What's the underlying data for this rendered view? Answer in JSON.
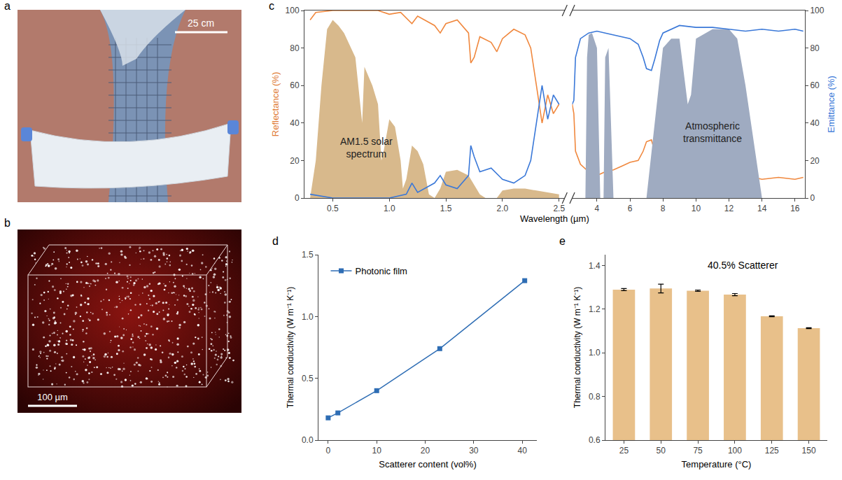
{
  "images": [
    {
      "panel": "a",
      "scale_bar": "25 cm"
    },
    {
      "panel": "b",
      "scale_bar": "100 µm"
    }
  ],
  "chart_data": [
    {
      "panel": "c",
      "type": "line",
      "xlabel": "Wavelength (µm)",
      "ylabel": "Reflectance (%)",
      "y2label": "Emittance (%)",
      "xlim": [
        0.25,
        2.55
      ],
      "xticks": [
        0.5,
        {
          "value": 1,
          "label": "1.0"
        },
        1.5,
        {
          "value": 2,
          "label": "2.0"
        },
        2.5
      ],
      "x2lim": [
        2.5,
        16.6
      ],
      "x2ticks": [
        4,
        6,
        8,
        10,
        12,
        14,
        16
      ],
      "ylim": [
        0,
        100
      ],
      "yticks": [
        0,
        20,
        40,
        60,
        80,
        100
      ],
      "y2lim": [
        0,
        100
      ],
      "y2ticks": [
        0,
        20,
        40,
        60,
        80,
        100
      ],
      "series": [
        {
          "name": "AM1.5 solar spectrum",
          "type": "area",
          "color": "#d8b98c",
          "x": [
            0.3,
            0.35,
            0.4,
            0.45,
            0.5,
            0.55,
            0.6,
            0.7,
            0.76,
            0.78,
            0.85,
            0.9,
            0.93,
            0.95,
            1.0,
            1.05,
            1.1,
            1.12,
            1.15,
            1.2,
            1.25,
            1.3,
            1.35,
            1.4,
            1.45,
            1.5,
            1.6,
            1.7,
            1.8,
            1.85,
            1.95,
            2.0,
            2.1,
            2.2,
            2.3,
            2.5
          ],
          "values": [
            0,
            20,
            60,
            90,
            95,
            92,
            88,
            75,
            40,
            70,
            60,
            50,
            20,
            25,
            42,
            38,
            20,
            5,
            10,
            28,
            25,
            18,
            2,
            0,
            5,
            14,
            15,
            12,
            2,
            0,
            0,
            4,
            5,
            5,
            4,
            2
          ]
        },
        {
          "name": "Atmospheric transmittance",
          "type": "area",
          "color": "#9fabc1",
          "axis": "y2",
          "x": [
            3.3,
            3.4,
            3.5,
            3.7,
            4.0,
            4.2,
            4.4,
            4.5,
            4.7,
            5.0,
            7.0,
            7.5,
            8.0,
            8.5,
            9.0,
            9.5,
            9.7,
            10.0,
            11.0,
            12.0,
            12.5,
            13.0,
            13.5,
            14.0,
            16.5
          ],
          "values": [
            0,
            75,
            87,
            88,
            80,
            0,
            0,
            75,
            80,
            0,
            0,
            40,
            80,
            85,
            85,
            50,
            55,
            85,
            90,
            90,
            85,
            60,
            30,
            0,
            0
          ]
        },
        {
          "color": "#f0883e",
          "x": [
            0.3,
            0.35,
            0.5,
            0.9,
            1.0,
            1.1,
            1.2,
            1.25,
            1.4,
            1.45,
            1.5,
            1.6,
            1.7,
            1.72,
            1.75,
            1.8,
            1.9,
            1.95,
            2.0,
            2.1,
            2.2,
            2.25,
            2.3,
            2.35,
            2.4,
            2.45,
            2.5,
            2.6,
            2.7,
            3.0,
            3.5,
            4.0,
            4.5,
            5.0,
            5.5,
            6.0,
            6.5,
            6.8,
            7.0,
            7.3,
            7.5,
            7.8,
            8.0,
            9.0,
            10.0,
            11.0,
            12.0,
            13.0,
            14.0,
            15.0,
            16.0,
            16.5
          ],
          "values": [
            95,
            99,
            100,
            100,
            98,
            99,
            93,
            97,
            92,
            88,
            93,
            95,
            88,
            72,
            75,
            86,
            83,
            78,
            85,
            90,
            87,
            80,
            60,
            40,
            55,
            45,
            50,
            45,
            25,
            18,
            14,
            12,
            14,
            15,
            17,
            19,
            20,
            25,
            30,
            31,
            25,
            15,
            10,
            7,
            8,
            9,
            10,
            12,
            10,
            11,
            10,
            11
          ]
        },
        {
          "color": "#3a78d8",
          "axis": "y2",
          "x": [
            0.3,
            0.5,
            1.0,
            1.15,
            1.2,
            1.25,
            1.4,
            1.45,
            1.5,
            1.6,
            1.7,
            1.72,
            1.75,
            1.8,
            1.9,
            2.0,
            2.1,
            2.2,
            2.25,
            2.3,
            2.35,
            2.4,
            2.45,
            2.5,
            2.6,
            2.7,
            3.0,
            3.5,
            4.0,
            4.5,
            5.0,
            5.5,
            6.0,
            6.5,
            6.8,
            7.0,
            7.3,
            7.5,
            7.8,
            8.0,
            9.0,
            10.0,
            11.0,
            12.0,
            13.0,
            14.0,
            15.0,
            16.0,
            16.5
          ],
          "values": [
            2,
            0,
            0,
            2,
            8,
            3,
            8,
            12,
            7,
            5,
            12,
            28,
            22,
            14,
            16,
            10,
            8,
            12,
            20,
            40,
            60,
            42,
            55,
            50,
            52,
            75,
            85,
            88,
            89,
            88,
            87,
            86,
            85,
            82,
            75,
            69,
            68,
            74,
            84,
            88,
            92,
            91,
            91,
            90,
            89,
            90,
            89,
            90,
            89
          ]
        }
      ]
    },
    {
      "panel": "d",
      "type": "line",
      "marker": "square",
      "legend": "upper left",
      "xlabel": "Scatterer content (vol%)",
      "ylabel": "Thermal conductivity (W m⁻¹ K⁻¹)",
      "xlim": [
        -2,
        43
      ],
      "xticks": [
        0,
        10,
        20,
        30,
        40
      ],
      "ylim": [
        0,
        1.5
      ],
      "yticks": [
        {
          "value": 0,
          "label": "0.0"
        },
        0.5,
        {
          "value": 1,
          "label": "1.0"
        },
        1.5
      ],
      "series": [
        {
          "name": "Photonic film",
          "color": "#2e6db4",
          "x": [
            0,
            2,
            10,
            23,
            40.5
          ],
          "values": [
            0.18,
            0.22,
            0.4,
            0.74,
            1.29
          ]
        }
      ]
    },
    {
      "panel": "e",
      "type": "bar",
      "color": "#e8c08a",
      "annotation": "40.5% Scatterer",
      "xlabel": "Temperature (°C)",
      "ylabel": "Thermal conductivity (W m⁻¹ K⁻¹)",
      "categories": [
        "25",
        "50",
        "75",
        "100",
        "125",
        "150"
      ],
      "values": [
        1.29,
        1.295,
        1.285,
        1.267,
        1.168,
        1.113
      ],
      "errors": [
        0.005,
        0.02,
        0.003,
        0.005,
        0.002,
        0.002
      ],
      "ylim": [
        0.6,
        1.45
      ],
      "yticks": [
        0.6,
        0.8,
        {
          "value": 1,
          "label": "1.0"
        },
        1.2,
        1.4
      ]
    }
  ]
}
